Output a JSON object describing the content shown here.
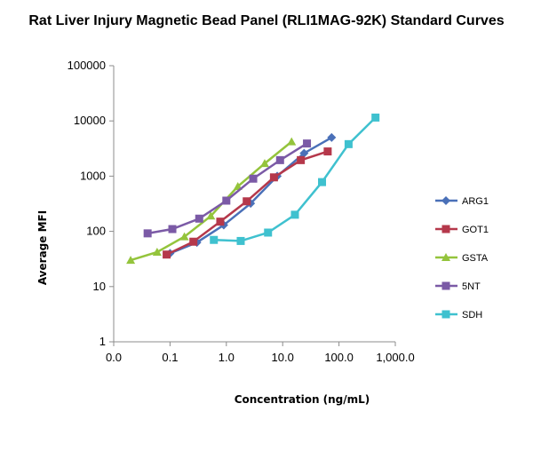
{
  "chart_data": {
    "type": "scatter",
    "title": "Rat Liver Injury Magnetic Bead Panel (RLI1MAG-92K) Standard Curves",
    "xlabel": "Concentration (ng/mL)",
    "ylabel": "Average MFI",
    "x_scale": "log",
    "y_scale": "log",
    "xlim": [
      0.01,
      1000
    ],
    "ylim": [
      1,
      100000
    ],
    "x_tick_values": [
      0.01,
      0.1,
      1,
      10,
      100,
      1000
    ],
    "x_tick_labels": [
      "0.0",
      "0.1",
      "1.0",
      "10.0",
      "100.0",
      "1,000.0"
    ],
    "y_tick_values": [
      1,
      10,
      100,
      1000,
      10000,
      100000
    ],
    "y_tick_labels": [
      "1",
      "10",
      "100",
      "1000",
      "10000",
      "100000"
    ],
    "grid": false,
    "legend_position": "right",
    "series": [
      {
        "name": "ARG1",
        "color": "#4a70b8",
        "marker": "diamond",
        "x": [
          0.1,
          0.3,
          0.9,
          2.7,
          8,
          24,
          74
        ],
        "y": [
          40,
          63,
          130,
          320,
          1000,
          2600,
          5000
        ]
      },
      {
        "name": "GOT1",
        "color": "#b5384b",
        "marker": "square",
        "x": [
          0.087,
          0.26,
          0.78,
          2.3,
          7,
          21,
          63
        ],
        "y": [
          38,
          65,
          150,
          350,
          950,
          1950,
          2800
        ]
      },
      {
        "name": "GSTA",
        "color": "#94c43c",
        "marker": "triangle",
        "x": [
          0.02,
          0.059,
          0.18,
          0.53,
          1.6,
          4.8,
          14.4
        ],
        "y": [
          30,
          42,
          80,
          190,
          650,
          1700,
          4200
        ]
      },
      {
        "name": "5NT",
        "color": "#7b5aa6",
        "marker": "square",
        "x": [
          0.04,
          0.11,
          0.33,
          1.0,
          3.0,
          9.0,
          27
        ],
        "y": [
          92,
          110,
          170,
          360,
          900,
          1950,
          3900
        ]
      },
      {
        "name": "SDH",
        "color": "#3fc1cf",
        "marker": "square",
        "x": [
          0.6,
          1.8,
          5.5,
          16.5,
          50,
          148,
          445
        ],
        "y": [
          70,
          67,
          95,
          200,
          780,
          3800,
          11500
        ]
      }
    ]
  }
}
